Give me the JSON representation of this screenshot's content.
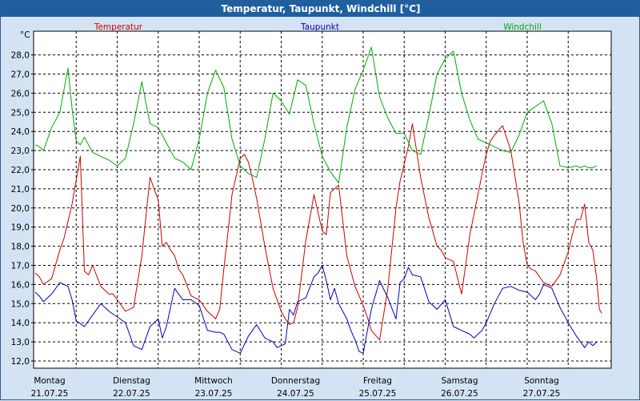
{
  "window": {
    "title": "Temperatur, Taupunkt, Windchill [°C]"
  },
  "chart_data": {
    "type": "line",
    "title": "Temperatur, Taupunkt, Windchill [°C]",
    "ylabel": "°C",
    "ylim": [
      11.5,
      29.0
    ],
    "yticks": [
      12.0,
      13.0,
      14.0,
      15.0,
      16.0,
      17.0,
      18.0,
      19.0,
      20.0,
      21.0,
      22.0,
      23.0,
      24.0,
      25.0,
      26.0,
      27.0,
      28.0
    ],
    "ytick_labels": [
      "12,0",
      "13,0",
      "14,0",
      "15,0",
      "16,0",
      "17,0",
      "18,0",
      "19,0",
      "20,0",
      "21,0",
      "22,0",
      "23,0",
      "24,0",
      "25,0",
      "26,0",
      "27,0",
      "28,0"
    ],
    "xlim_days": [
      0,
      7
    ],
    "days": [
      {
        "weekday": "Montag",
        "date": "21.07.25"
      },
      {
        "weekday": "Dienstag",
        "date": "22.07.25"
      },
      {
        "weekday": "Mittwoch",
        "date": "23.07.25"
      },
      {
        "weekday": "Donnerstag",
        "date": "24.07.25"
      },
      {
        "weekday": "Freitag",
        "date": "25.07.25"
      },
      {
        "weekday": "Samstag",
        "date": "26.07.25"
      },
      {
        "weekday": "Sonntag",
        "date": "27.07.25"
      }
    ],
    "grid": true,
    "legend_position": "top",
    "series": [
      {
        "name": "Temperatur",
        "color": "#cc0000",
        "x": [
          0.0,
          0.05,
          0.1,
          0.2,
          0.3,
          0.35,
          0.45,
          0.55,
          0.6,
          0.65,
          0.7,
          0.8,
          0.85,
          0.9,
          0.95,
          1.0,
          1.1,
          1.2,
          1.3,
          1.4,
          1.5,
          1.55,
          1.6,
          1.65,
          1.7,
          1.75,
          1.8,
          1.9,
          2.0,
          2.1,
          2.2,
          2.25,
          2.3,
          2.35,
          2.4,
          2.5,
          2.55,
          2.6,
          2.65,
          2.7,
          2.8,
          2.9,
          3.0,
          3.05,
          3.1,
          3.15,
          3.2,
          3.3,
          3.4,
          3.5,
          3.55,
          3.6,
          3.7,
          3.8,
          3.9,
          3.95,
          4.0,
          4.05,
          4.1,
          4.2,
          4.3,
          4.4,
          4.45,
          4.5,
          4.55,
          4.6,
          4.7,
          4.8,
          4.9,
          4.95,
          5.0,
          5.1,
          5.2,
          5.3,
          5.4,
          5.45,
          5.5,
          5.55,
          5.6,
          5.7,
          5.8,
          5.9,
          5.95,
          6.0,
          6.05,
          6.1,
          6.2,
          6.3,
          6.4,
          6.5,
          6.55,
          6.6,
          6.65,
          6.7,
          6.75,
          6.8,
          6.85
        ],
        "values": [
          16.6,
          16.4,
          16.0,
          16.3,
          17.8,
          18.4,
          20.2,
          22.7,
          16.7,
          16.5,
          17.0,
          15.9,
          15.7,
          15.5,
          15.5,
          15.2,
          14.6,
          14.8,
          17.5,
          21.6,
          20.4,
          18.0,
          18.2,
          17.8,
          17.5,
          16.8,
          16.5,
          15.4,
          15.2,
          14.6,
          14.2,
          14.7,
          16.8,
          18.7,
          20.7,
          22.6,
          22.8,
          22.4,
          21.5,
          20.5,
          18.0,
          15.8,
          14.6,
          14.2,
          13.9,
          14.0,
          14.8,
          18.3,
          20.7,
          18.8,
          18.6,
          20.8,
          21.2,
          17.5,
          15.9,
          15.4,
          14.9,
          14.3,
          13.6,
          13.1,
          15.8,
          20.0,
          21.4,
          22.3,
          23.2,
          24.4,
          21.6,
          19.5,
          18.0,
          17.8,
          17.4,
          17.2,
          15.5,
          18.6,
          20.7,
          21.8,
          22.8,
          23.5,
          23.8,
          24.3,
          23.0,
          20.3,
          18.2,
          17.0,
          16.8,
          16.7,
          16.1,
          15.9,
          16.5,
          17.7,
          18.6,
          19.4,
          19.4,
          20.2,
          18.2,
          17.8,
          16.2
        ],
        "extra": [
          14.7,
          14.5
        ]
      },
      {
        "name": "Taupunkt",
        "color": "#0000bb",
        "x": [
          0.0,
          0.05,
          0.1,
          0.2,
          0.3,
          0.4,
          0.45,
          0.5,
          0.6,
          0.7,
          0.8,
          0.9,
          1.0,
          1.1,
          1.2,
          1.3,
          1.4,
          1.5,
          1.55,
          1.6,
          1.7,
          1.75,
          1.8,
          1.9,
          2.0,
          2.1,
          2.2,
          2.25,
          2.3,
          2.4,
          2.5,
          2.6,
          2.7,
          2.8,
          2.9,
          2.95,
          3.0,
          3.05,
          3.1,
          3.15,
          3.2,
          3.3,
          3.4,
          3.45,
          3.5,
          3.55,
          3.6,
          3.65,
          3.7,
          3.8,
          3.85,
          3.9,
          3.95,
          4.0,
          4.1,
          4.2,
          4.3,
          4.4,
          4.45,
          4.5,
          4.55,
          4.6,
          4.7,
          4.8,
          4.9,
          5.0,
          5.1,
          5.2,
          5.3,
          5.35,
          5.4,
          5.45,
          5.5,
          5.6,
          5.7,
          5.8,
          5.9,
          6.0,
          6.1,
          6.15,
          6.2,
          6.3,
          6.4,
          6.5,
          6.6,
          6.7,
          6.75,
          6.8,
          6.85
        ],
        "values": [
          15.6,
          15.4,
          15.1,
          15.5,
          16.1,
          15.9,
          15.2,
          14.1,
          13.8,
          14.4,
          15.0,
          14.6,
          14.3,
          14.0,
          12.8,
          12.6,
          13.8,
          14.2,
          13.2,
          13.8,
          15.8,
          15.5,
          15.2,
          15.2,
          14.9,
          13.6,
          13.5,
          13.5,
          13.4,
          12.6,
          12.4,
          13.3,
          13.9,
          13.2,
          13.0,
          12.7,
          12.8,
          12.9,
          14.7,
          14.4,
          15.1,
          15.3,
          16.4,
          16.6,
          17.0,
          16.2,
          15.2,
          15.8,
          15.0,
          14.2,
          13.6,
          13.1,
          12.5,
          12.4,
          14.7,
          16.2,
          15.3,
          14.2,
          16.1,
          16.3,
          16.9,
          16.5,
          16.4,
          15.1,
          14.7,
          15.2,
          13.8,
          13.6,
          13.4,
          13.2,
          13.4,
          13.6,
          14.0,
          15.0,
          15.8,
          15.9,
          15.7,
          15.6,
          15.2,
          15.5,
          16.0,
          15.8,
          14.8,
          14.0,
          13.3,
          12.7,
          13.0,
          12.8,
          13.0
        ],
        "extra": []
      },
      {
        "name": "Windchill",
        "color": "#00aa00",
        "x": [
          0.0,
          0.05,
          0.1,
          0.2,
          0.3,
          0.4,
          0.45,
          0.5,
          0.55,
          0.6,
          0.65,
          0.7,
          0.8,
          0.9,
          1.0,
          1.1,
          1.2,
          1.3,
          1.4,
          1.5,
          1.6,
          1.7,
          1.8,
          1.9,
          2.0,
          2.1,
          2.2,
          2.3,
          2.4,
          2.5,
          2.6,
          2.7,
          2.8,
          2.9,
          3.0,
          3.1,
          3.2,
          3.3,
          3.4,
          3.5,
          3.6,
          3.7,
          3.8,
          3.9,
          4.0,
          4.1,
          4.2,
          4.3,
          4.4,
          4.5,
          4.6,
          4.7,
          4.8,
          4.9,
          5.0,
          5.1,
          5.2,
          5.3,
          5.4,
          5.5,
          5.6,
          5.7,
          5.8,
          5.9,
          6.0,
          6.1,
          6.2,
          6.3,
          6.4,
          6.5,
          6.6,
          6.65,
          6.7,
          6.75,
          6.8,
          6.85
        ],
        "values": [
          23.3,
          23.2,
          23.0,
          24.2,
          25.0,
          27.3,
          25.2,
          23.5,
          23.3,
          23.7,
          23.3,
          22.9,
          22.7,
          22.5,
          22.2,
          22.6,
          24.4,
          26.6,
          24.4,
          24.2,
          23.4,
          22.6,
          22.4,
          22.0,
          23.6,
          26.0,
          27.2,
          26.3,
          23.6,
          22.2,
          21.8,
          21.6,
          23.6,
          26.0,
          25.6,
          24.9,
          26.7,
          26.4,
          24.4,
          22.7,
          21.9,
          21.3,
          24.2,
          26.2,
          27.2,
          28.4,
          25.8,
          24.7,
          23.9,
          23.9,
          23.0,
          22.8,
          24.8,
          27.0,
          27.8,
          28.2,
          26.0,
          24.6,
          23.6,
          23.4,
          23.2,
          23.0,
          22.9,
          23.8,
          25.0,
          25.3,
          25.6,
          24.4,
          22.2,
          22.1,
          22.2,
          22.1,
          22.2,
          22.1,
          22.1,
          22.2
        ],
        "extra": []
      }
    ]
  }
}
